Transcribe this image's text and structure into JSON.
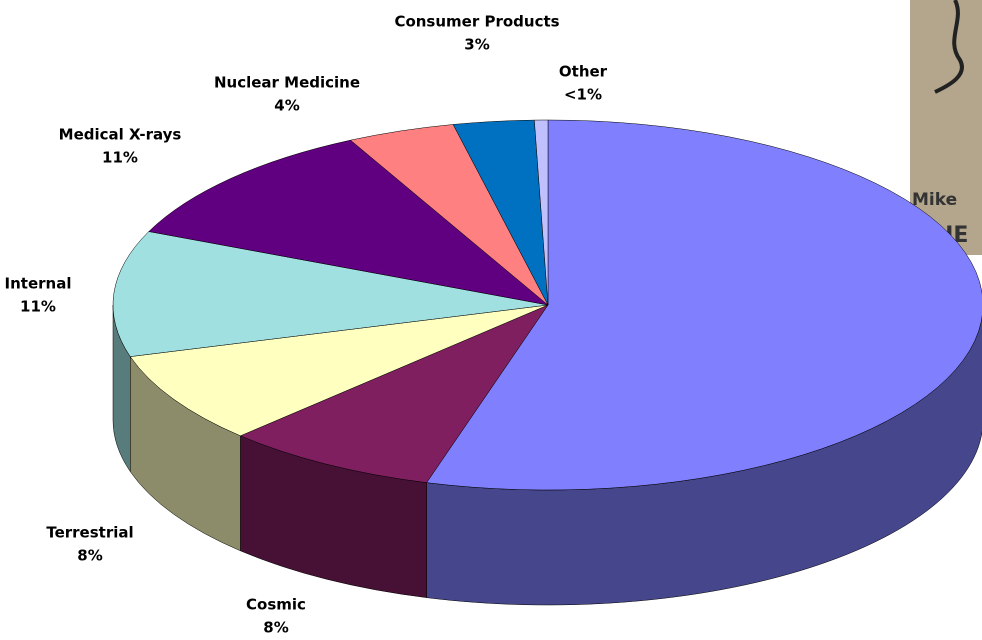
{
  "chart_data": {
    "type": "pie3d",
    "categories": [
      null,
      "Cosmic",
      "Terrestrial",
      "Internal",
      "Medical  X-rays",
      "Nuclear Medicine",
      "Consumer Products",
      "Other"
    ],
    "values": [
      54.5,
      8,
      8,
      11,
      11,
      4,
      3,
      0.5
    ],
    "value_labels": [
      null,
      "8%",
      "8%",
      "11%",
      "11%",
      "4%",
      "3%",
      "<1%"
    ],
    "colors": [
      "#8080ff",
      "#7f1f5f",
      "#ffffc0",
      "#a0e0e0",
      "#600080",
      "#ff8080",
      "#0070c0",
      "#c0c0ff"
    ]
  },
  "photo": {
    "caption": "Mike",
    "fragment": "HE"
  }
}
